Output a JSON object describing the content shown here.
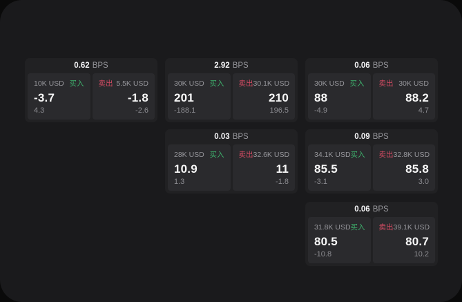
{
  "colors": {
    "window_bg": "#1a1a1c",
    "card_bg": "#212123",
    "panel_bg": "#2a2a2d",
    "buy_green": "#3eb06c",
    "sell_red": "#d14b62",
    "label_gray": "#96969b",
    "small_gray": "#8c8c91"
  },
  "cards": [
    {
      "bps": "0.62",
      "bps_unit": "BPS",
      "buy": {
        "amount": "10K USD",
        "side": "买入",
        "price": "-3.7",
        "change": "4.3"
      },
      "sell": {
        "side": "卖出",
        "amount": "5.5K USD",
        "price": "-1.8",
        "change": "-2.6"
      }
    },
    {
      "bps": "2.92",
      "bps_unit": "BPS",
      "buy": {
        "amount": "30K USD",
        "side": "买入",
        "price": "201",
        "change": "-188.1"
      },
      "sell": {
        "side": "卖出",
        "amount": "30.1K USD",
        "price": "210",
        "change": "196.5"
      }
    },
    {
      "bps": "0.06",
      "bps_unit": "BPS",
      "buy": {
        "amount": "30K USD",
        "side": "买入",
        "price": "88",
        "change": "-4.9"
      },
      "sell": {
        "side": "卖出",
        "amount": "30K USD",
        "price": "88.2",
        "change": "4.7"
      }
    },
    {
      "bps": "0.03",
      "bps_unit": "BPS",
      "buy": {
        "amount": "28K USD",
        "side": "买入",
        "price": "10.9",
        "change": "1.3"
      },
      "sell": {
        "side": "卖出",
        "amount": "32.6K USD",
        "price": "11",
        "change": "-1.8"
      }
    },
    {
      "bps": "0.09",
      "bps_unit": "BPS",
      "buy": {
        "amount": "34.1K USD",
        "side": "买入",
        "price": "85.5",
        "change": "-3.1"
      },
      "sell": {
        "side": "卖出",
        "amount": "32.8K USD",
        "price": "85.8",
        "change": "3.0"
      }
    },
    {
      "bps": "0.06",
      "bps_unit": "BPS",
      "buy": {
        "amount": "31.8K USD",
        "side": "买入",
        "price": "80.5",
        "change": "-10.8"
      },
      "sell": {
        "side": "卖出",
        "amount": "39.1K USD",
        "price": "80.7",
        "change": "10.2"
      }
    }
  ]
}
